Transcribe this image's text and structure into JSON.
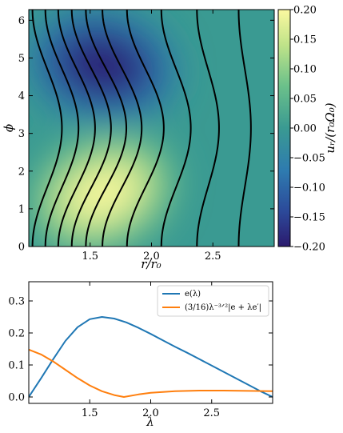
{
  "chart_data": [
    {
      "type": "heatmap",
      "title": "",
      "xlabel": "r/r₀",
      "ylabel": "ϕ",
      "xlim": [
        1.0,
        3.0
      ],
      "ylim": [
        0,
        6.283
      ],
      "xticks": [
        1.5,
        2.0,
        2.5
      ],
      "xtick_labels": [
        "1.5",
        "2.0",
        "2.5"
      ],
      "yticks": [
        0,
        1,
        2,
        3,
        4,
        5,
        6
      ],
      "ytick_labels": [
        "0",
        "1",
        "2",
        "3",
        "4",
        "5",
        "6"
      ],
      "colormap": "YlGnBu_r",
      "colorbar": {
        "label": "uᵣ/(r₀Ω₀)",
        "min": -0.2,
        "max": 0.2,
        "ticks": [
          0.2,
          0.15,
          0.1,
          0.05,
          0.0,
          -0.05,
          -0.1,
          -0.15,
          -0.2
        ],
        "tick_labels": [
          "0.20",
          "0.15",
          "0.10",
          "0.05",
          "0.00",
          "−0.05",
          "−0.10",
          "−0.15",
          "−0.20"
        ]
      },
      "field_features": [
        {
          "kind": "maximum",
          "r": 1.6,
          "phi": 1.4,
          "value": 0.2
        },
        {
          "kind": "minimum",
          "r": 1.6,
          "phi": 4.8,
          "value": -0.2
        }
      ],
      "streamlines": {
        "color": "#000000",
        "shape": "r = r_base + A(r_base) * cos(phi - pi)",
        "lines": [
          {
            "r_base": 1.15,
            "amplitude": 0.12
          },
          {
            "r_base": 1.27,
            "amplitude": 0.135
          },
          {
            "r_base": 1.39,
            "amplitude": 0.15
          },
          {
            "r_base": 1.51,
            "amplitude": 0.16
          },
          {
            "r_base": 1.63,
            "amplitude": 0.165
          },
          {
            "r_base": 1.76,
            "amplitude": 0.16
          },
          {
            "r_base": 1.95,
            "amplitude": 0.15
          },
          {
            "r_base": 2.2,
            "amplitude": 0.12
          },
          {
            "r_base": 2.46,
            "amplitude": 0.09
          },
          {
            "r_base": 2.76,
            "amplitude": 0.05
          }
        ]
      }
    },
    {
      "type": "line",
      "title": "",
      "xlabel": "λ",
      "ylabel": "",
      "xlim": [
        1.0,
        3.0
      ],
      "ylim": [
        -0.02,
        0.36
      ],
      "xticks": [
        1.5,
        2.0,
        2.5
      ],
      "xtick_labels": [
        "1.5",
        "2.0",
        "2.5"
      ],
      "yticks": [
        0.0,
        0.1,
        0.2,
        0.3
      ],
      "ytick_labels": [
        "0.0",
        "0.1",
        "0.2",
        "0.3"
      ],
      "legend": "top-right",
      "series": [
        {
          "name": "e(λ)",
          "color": "#1f77b4",
          "x": [
            1.0,
            1.1,
            1.2,
            1.3,
            1.4,
            1.5,
            1.6,
            1.7,
            1.8,
            1.9,
            2.0,
            2.1,
            2.2,
            2.3,
            2.4,
            2.5,
            2.6,
            2.7,
            2.8,
            2.9,
            3.0
          ],
          "y": [
            0.0,
            0.058,
            0.118,
            0.175,
            0.218,
            0.243,
            0.25,
            0.245,
            0.233,
            0.216,
            0.197,
            0.177,
            0.157,
            0.138,
            0.118,
            0.098,
            0.078,
            0.058,
            0.038,
            0.018,
            0.0
          ]
        },
        {
          "name": "(3/16)λ⁻³ᐟ²|e + λe′|",
          "color": "#ff7f0e",
          "x": [
            1.0,
            1.1,
            1.2,
            1.3,
            1.4,
            1.5,
            1.6,
            1.7,
            1.78,
            1.9,
            2.0,
            2.2,
            2.4,
            2.6,
            2.8,
            3.0
          ],
          "y": [
            0.148,
            0.133,
            0.111,
            0.085,
            0.059,
            0.036,
            0.018,
            0.006,
            0.0,
            0.008,
            0.013,
            0.018,
            0.02,
            0.02,
            0.019,
            0.018
          ]
        }
      ]
    }
  ]
}
